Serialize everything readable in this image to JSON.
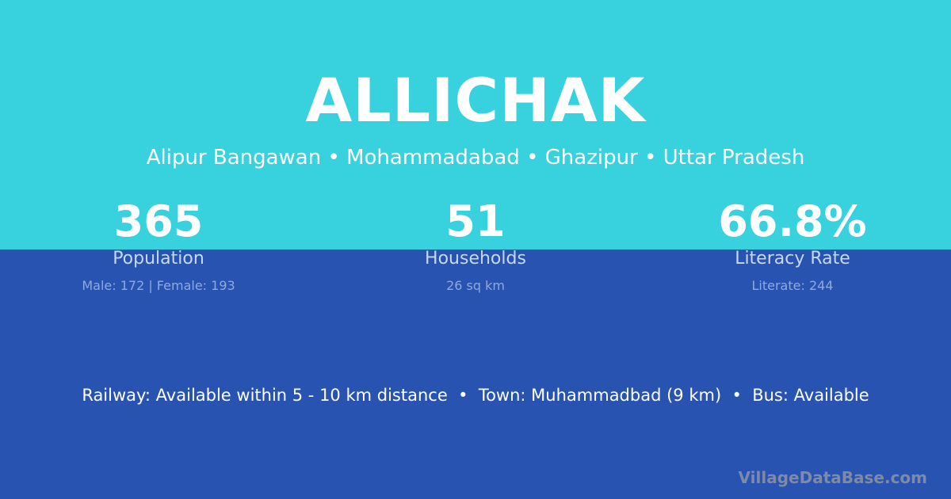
{
  "title": "ALLICHAK",
  "subtitle": "Alipur Bangawan • Mohammadabad • Ghazipur • Uttar Pradesh",
  "stats": [
    {
      "value": "365",
      "label": "Population",
      "detail": "Male: 172 | Female: 193"
    },
    {
      "value": "51",
      "label": "Households",
      "detail": "26 sq km"
    },
    {
      "value": "66.8%",
      "label": "Literacy Rate",
      "detail": "Literate: 244"
    }
  ],
  "info": "Railway: Available within 5 - 10 km distance  •  Town: Muhammadbad (9 km)  •  Bus: Available",
  "brand": "VillageDataBase.com",
  "colors": {
    "top": "#38d1de",
    "bottom": "#2853b1"
  }
}
